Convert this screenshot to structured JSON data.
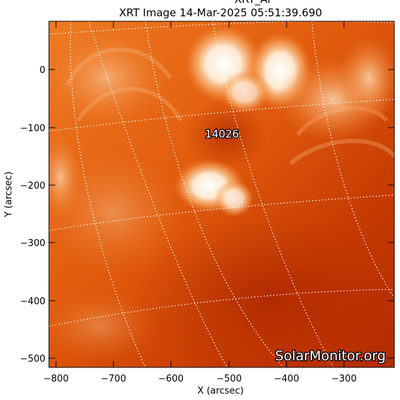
{
  "title_top": "XRT_Al",
  "title": "XRT Image 14-Mar-2025 05:51:39.690",
  "xlabel": "X (arcsec)",
  "ylabel": "Y (arcsec)",
  "region_label": "14026",
  "watermark": "SolarMonitor.org",
  "x_ticks": [
    "−800",
    "−700",
    "−600",
    "−500",
    "−400",
    "−300"
  ],
  "y_ticks": [
    "0",
    "−100",
    "−200",
    "−300",
    "−400",
    "−500"
  ],
  "chart_data": {
    "type": "heatmap",
    "title": "XRT Image 14-Mar-2025 05:51:39.690",
    "xlabel": "X (arcsec)",
    "ylabel": "Y (arcsec)",
    "xlim": [
      -815,
      -225
    ],
    "ylim": [
      -520,
      85
    ],
    "x_tick_values": [
      -800,
      -700,
      -600,
      -500,
      -400,
      -300
    ],
    "y_tick_values": [
      0,
      -100,
      -200,
      -300,
      -400,
      -500
    ],
    "active_region": {
      "label": "14026",
      "x": -535,
      "y": -110
    },
    "colormap": [
      "#a51e00",
      "#d44500",
      "#ec6c1c",
      "#f6a063",
      "#ffe6cf",
      "#ffffff"
    ],
    "grid": "dotted heliographic grid, white"
  }
}
